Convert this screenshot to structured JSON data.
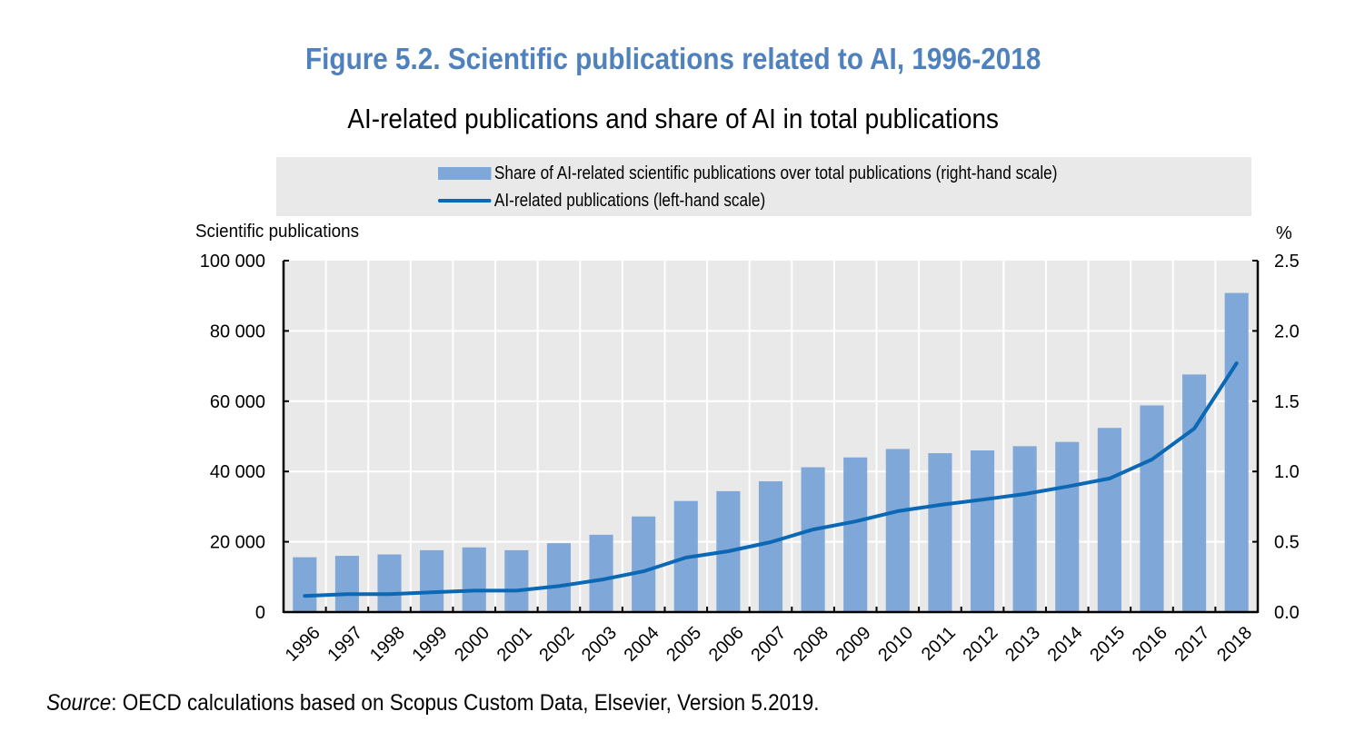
{
  "figure": {
    "title": "Figure 5.2. Scientific publications related to AI, 1996-2018",
    "subtitle": "AI-related publications and share of AI in total publications",
    "source_label": "Source",
    "source_text": ": OECD calculations based on Scopus Custom Data, Elsevier, Version 5.2019."
  },
  "colors": {
    "bar": "#7fa7d8",
    "line": "#0a68b4",
    "title": "#4f81bd",
    "plot_bg": "#e9e9e9"
  },
  "chart_data": {
    "type": "bar+line",
    "title": "Figure 5.2. Scientific publications related to AI, 1996-2018",
    "subtitle": "AI-related publications and share of AI in total publications",
    "legend_position": "top",
    "grid": true,
    "categories": [
      "1996",
      "1997",
      "1998",
      "1999",
      "2000",
      "2001",
      "2002",
      "2003",
      "2004",
      "2005",
      "2006",
      "2007",
      "2008",
      "2009",
      "2010",
      "2011",
      "2012",
      "2013",
      "2014",
      "2015",
      "2016",
      "2017",
      "2018"
    ],
    "left_axis": {
      "label": "Scientific publications",
      "range": [
        0,
        100000
      ],
      "ticks": [
        0,
        20000,
        40000,
        60000,
        80000,
        100000
      ],
      "tick_labels": [
        "0",
        "20 000",
        "40 000",
        "60 000",
        "80 000",
        "100 000"
      ]
    },
    "right_axis": {
      "label": "%",
      "range": [
        0,
        2.5
      ],
      "ticks": [
        0,
        0.5,
        1.0,
        1.5,
        2.0,
        2.5
      ],
      "tick_labels": [
        "0.0",
        "0.5",
        "1.0",
        "1.5",
        "2.0",
        "2.5"
      ]
    },
    "series": [
      {
        "name": "Share of AI-related scientific publications over total publications (right-hand scale)",
        "type": "bar",
        "axis": "right",
        "values": [
          0.39,
          0.4,
          0.41,
          0.44,
          0.46,
          0.44,
          0.49,
          0.55,
          0.68,
          0.79,
          0.86,
          0.93,
          1.03,
          1.1,
          1.16,
          1.13,
          1.15,
          1.18,
          1.21,
          1.31,
          1.47,
          1.69,
          2.27
        ]
      },
      {
        "name": "AI-related publications (left-hand scale)",
        "type": "line",
        "axis": "left",
        "values": [
          4600,
          5100,
          5100,
          5600,
          6100,
          6100,
          7400,
          9200,
          11600,
          15500,
          17300,
          19900,
          23500,
          25800,
          28700,
          30500,
          32000,
          33600,
          35700,
          38000,
          43400,
          52200,
          70800
        ]
      }
    ]
  }
}
